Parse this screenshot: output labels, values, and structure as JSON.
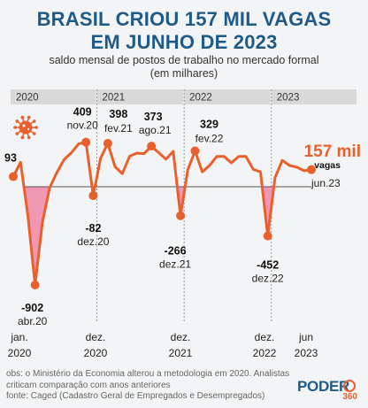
{
  "chart_data": {
    "type": "line",
    "title": "BRASIL CRIOU 157 MIL VAGAS",
    "title_line2": "EM JUNHO DE 2023",
    "subtitle": "saldo mensal de postos de trabalho no mercado formal",
    "subtitle_line2": "(em milhares)",
    "ylabel": "",
    "xlabel": "",
    "ylim": [
      -950,
      450
    ],
    "grid": false,
    "year_bands": [
      "2020",
      "2021",
      "2022",
      "2023"
    ],
    "x_ticks": [
      {
        "line1": "jan.",
        "line2": "2020"
      },
      {
        "line1": "dez.",
        "line2": "2020"
      },
      {
        "line1": "dez.",
        "line2": "2021"
      },
      {
        "line1": "dez.",
        "line2": "2022"
      },
      {
        "line1": "jun",
        "line2": "2023"
      }
    ],
    "x": [
      "jan.20",
      "fev.20",
      "mar.20",
      "abr.20",
      "mai.20",
      "jun.20",
      "jul.20",
      "ago.20",
      "set.20",
      "out.20",
      "nov.20",
      "dez.20",
      "jan.21",
      "fev.21",
      "mar.21",
      "abr.21",
      "mai.21",
      "jun.21",
      "jul.21",
      "ago.21",
      "set.21",
      "out.21",
      "nov.21",
      "dez.21",
      "jan.22",
      "fev.22",
      "mar.22",
      "abr.22",
      "mai.22",
      "jun.22",
      "jul.22",
      "ago.22",
      "set.22",
      "out.22",
      "nov.22",
      "dez.22",
      "jan.23",
      "fev.23",
      "mar.23",
      "abr.23",
      "mai.23",
      "jun.23"
    ],
    "series": [
      {
        "values": [
          93,
          225,
          -260,
          -902,
          -330,
          -10,
          131,
          250,
          313,
          394,
          409,
          -82,
          260,
          398,
          184,
          120,
          280,
          309,
          304,
          373,
          313,
          253,
          325,
          -266,
          155,
          329,
          136,
          196,
          278,
          278,
          219,
          278,
          278,
          160,
          136,
          -452,
          84,
          242,
          195,
          180,
          147,
          157
        ],
        "color": "#e8602c"
      }
    ],
    "annotations": [
      {
        "index": 0,
        "value": "93",
        "label": ""
      },
      {
        "index": 3,
        "value": "-902",
        "label": "abr.20"
      },
      {
        "index": 10,
        "value": "409",
        "label": "nov.20"
      },
      {
        "index": 11,
        "value": "-82",
        "label": "dez.20"
      },
      {
        "index": 13,
        "value": "398",
        "label": "fev.21"
      },
      {
        "index": 19,
        "value": "373",
        "label": "ago.21"
      },
      {
        "index": 23,
        "value": "-266",
        "label": "dez.21"
      },
      {
        "index": 25,
        "value": "329",
        "label": "fev.22"
      },
      {
        "index": 35,
        "value": "-452",
        "label": "dez.22"
      }
    ],
    "highlight": {
      "index": 41,
      "value": "157 mil",
      "suffix": "vagas",
      "label": "jun.23"
    }
  },
  "notes": {
    "obs": "obs: o Ministério da Economia alterou a metodologia em 2020. Analistas criticam comparação com anos anteriores",
    "source": "fonte: Caged (Cadastro Geral de Empregados e Desempregados)"
  },
  "logo": {
    "text": "PODER",
    "number": "360"
  },
  "colors": {
    "line": "#e8602c",
    "title": "#1f5b86",
    "negative_fill": "#ee86a8",
    "band": "#d9d9d9"
  }
}
